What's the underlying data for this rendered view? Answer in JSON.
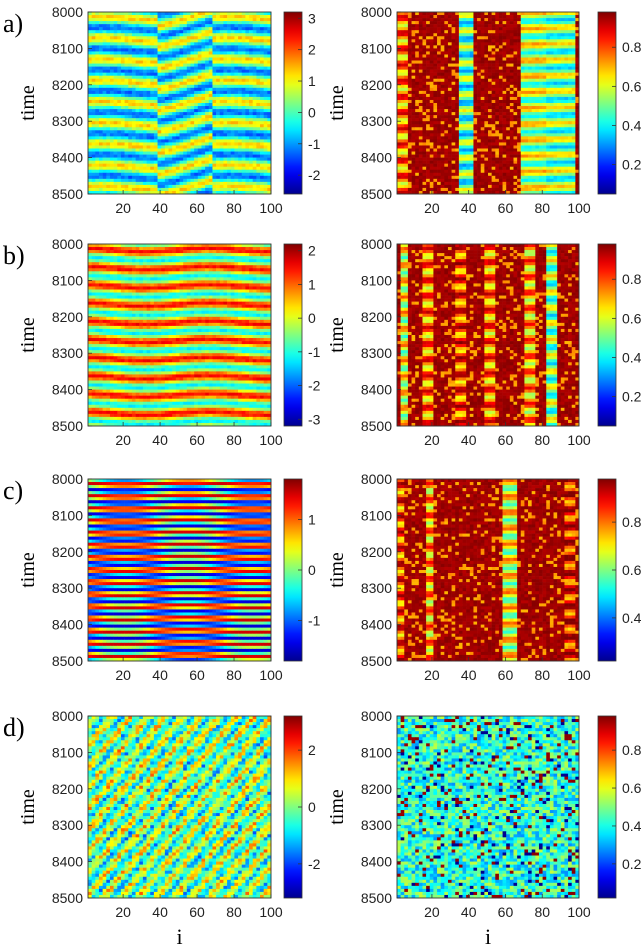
{
  "chart_data": [
    {
      "type": "heatmap",
      "panel": "a)",
      "field": "phase",
      "xlabel": "",
      "ylabel": "time",
      "xlim": [
        1,
        100
      ],
      "ylim": [
        8000,
        8500
      ],
      "x_ticks": [
        "20",
        "40",
        "60",
        "80",
        "100"
      ],
      "y_ticks": [
        "8000",
        "8100",
        "8200",
        "8300",
        "8400",
        "8500"
      ],
      "colorbar": {
        "range": [
          -2.6,
          3.2
        ],
        "ticks": [
          "-2",
          "-1",
          "0",
          "1",
          "2",
          "3"
        ]
      },
      "pattern": "stripes",
      "wave": 1
    },
    {
      "type": "heatmap",
      "panel": "a)",
      "field": "order",
      "xlabel": "",
      "ylabel": "time",
      "xlim": [
        1,
        100
      ],
      "ylim": [
        8000,
        8500
      ],
      "x_ticks": [
        "20",
        "40",
        "60",
        "80",
        "100"
      ],
      "y_ticks": [
        "8000",
        "8100",
        "8200",
        "8300",
        "8400",
        "8500"
      ],
      "colorbar": {
        "range": [
          0.05,
          0.98
        ],
        "ticks": [
          "0.2",
          "0.4",
          "0.6",
          "0.8"
        ]
      },
      "pattern": "columns",
      "variant": 1
    },
    {
      "type": "heatmap",
      "panel": "b)",
      "field": "phase",
      "xlabel": "",
      "ylabel": "time",
      "xlim": [
        1,
        100
      ],
      "ylim": [
        8000,
        8500
      ],
      "x_ticks": [
        "20",
        "40",
        "60",
        "80",
        "100"
      ],
      "y_ticks": [
        "8000",
        "8100",
        "8200",
        "8300",
        "8400",
        "8500"
      ],
      "colorbar": {
        "range": [
          -3.2,
          2.2
        ],
        "ticks": [
          "-3",
          "-2",
          "-1",
          "0",
          "1",
          "2"
        ]
      },
      "pattern": "stripes",
      "wave": 2
    },
    {
      "type": "heatmap",
      "panel": "b)",
      "field": "order",
      "xlabel": "",
      "ylabel": "time",
      "xlim": [
        1,
        100
      ],
      "ylim": [
        8000,
        8500
      ],
      "x_ticks": [
        "20",
        "40",
        "60",
        "80",
        "100"
      ],
      "y_ticks": [
        "8000",
        "8100",
        "8200",
        "8300",
        "8400",
        "8500"
      ],
      "colorbar": {
        "range": [
          0.05,
          0.98
        ],
        "ticks": [
          "0.2",
          "0.4",
          "0.6",
          "0.8"
        ]
      },
      "pattern": "columns",
      "variant": 2
    },
    {
      "type": "heatmap",
      "panel": "c)",
      "field": "phase",
      "xlabel": "",
      "ylabel": "time",
      "xlim": [
        1,
        100
      ],
      "ylim": [
        8000,
        8500
      ],
      "x_ticks": [
        "20",
        "40",
        "60",
        "80",
        "100"
      ],
      "y_ticks": [
        "8000",
        "8100",
        "8200",
        "8300",
        "8400",
        "8500"
      ],
      "colorbar": {
        "range": [
          -1.8,
          1.8
        ],
        "ticks": [
          "-1",
          "0",
          "1"
        ]
      },
      "pattern": "stripes",
      "wave": 3
    },
    {
      "type": "heatmap",
      "panel": "c)",
      "field": "order",
      "xlabel": "",
      "ylabel": "time",
      "xlim": [
        1,
        100
      ],
      "ylim": [
        8000,
        8500
      ],
      "x_ticks": [
        "20",
        "40",
        "60",
        "80",
        "100"
      ],
      "y_ticks": [
        "8000",
        "8100",
        "8200",
        "8300",
        "8400",
        "8500"
      ],
      "colorbar": {
        "range": [
          0.22,
          0.98
        ],
        "ticks": [
          "0.4",
          "0.6",
          "0.8"
        ]
      },
      "pattern": "columns",
      "variant": 3
    },
    {
      "type": "heatmap",
      "panel": "d)",
      "field": "phase",
      "xlabel": "i",
      "ylabel": "time",
      "xlim": [
        1,
        100
      ],
      "ylim": [
        8000,
        8500
      ],
      "x_ticks": [
        "20",
        "40",
        "60",
        "80",
        "100"
      ],
      "y_ticks": [
        "8000",
        "8100",
        "8200",
        "8300",
        "8400",
        "8500"
      ],
      "colorbar": {
        "range": [
          -3.2,
          3.2
        ],
        "ticks": [
          "-2",
          "0",
          "2"
        ]
      },
      "pattern": "noise",
      "wave": 4
    },
    {
      "type": "heatmap",
      "panel": "d)",
      "field": "order",
      "xlabel": "i",
      "ylabel": "time",
      "xlim": [
        1,
        100
      ],
      "ylim": [
        8000,
        8500
      ],
      "x_ticks": [
        "20",
        "40",
        "60",
        "80",
        "100"
      ],
      "y_ticks": [
        "8000",
        "8100",
        "8200",
        "8300",
        "8400",
        "8500"
      ],
      "colorbar": {
        "range": [
          0.02,
          0.98
        ],
        "ticks": [
          "0.2",
          "0.4",
          "0.6",
          "0.8"
        ]
      },
      "pattern": "noise-order",
      "variant": 4
    }
  ],
  "labels": {
    "panels": [
      "a)",
      "b)",
      "c)",
      "d)"
    ],
    "ylabel": "time",
    "xlabel": "i"
  },
  "colormap": [
    "#00008f",
    "#0000ff",
    "#00ffff",
    "#ffff00",
    "#ff0000",
    "#800000"
  ]
}
